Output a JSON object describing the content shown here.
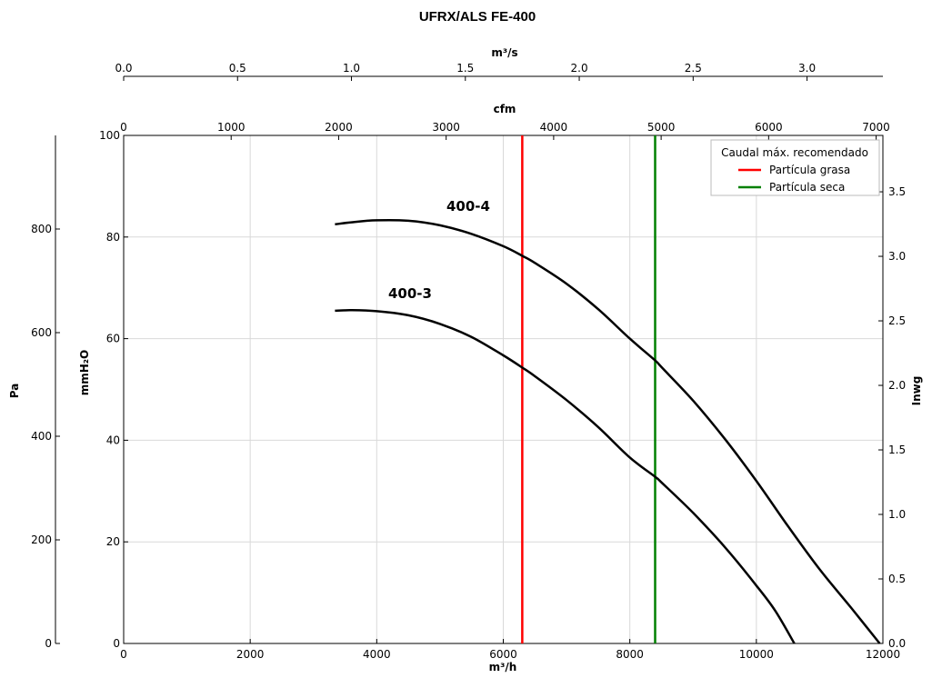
{
  "chart_data": {
    "type": "line",
    "title": "UFRX/ALS FE-400",
    "axes": {
      "bottom": {
        "label": "m³/h",
        "range": [
          0,
          12000
        ],
        "ticks": [
          "0",
          "2000",
          "4000",
          "6000",
          "8000",
          "10000",
          "12000"
        ]
      },
      "top_cfm": {
        "label": "cfm",
        "range": [
          0,
          7062.9
        ],
        "ticks": [
          "0",
          "1000",
          "2000",
          "3000",
          "4000",
          "5000",
          "6000",
          "7000"
        ]
      },
      "top_m3s": {
        "label": "m³/s",
        "range": [
          0,
          3.333
        ],
        "ticks": [
          "0.0",
          "0.5",
          "1.0",
          "1.5",
          "2.0",
          "2.5",
          "3.0"
        ]
      },
      "left_mmh2o": {
        "label": "mmH₂O",
        "range": [
          0,
          100
        ],
        "ticks": [
          "0",
          "20",
          "40",
          "60",
          "80",
          "100"
        ]
      },
      "left_pa": {
        "label": "Pa",
        "range": [
          0,
          980.67
        ],
        "ticks": [
          "0",
          "200",
          "400",
          "600",
          "800"
        ]
      },
      "right_inwg": {
        "label": "Inwg",
        "range": [
          0,
          3.937
        ],
        "ticks": [
          "0.0",
          "0.5",
          "1.0",
          "1.5",
          "2.0",
          "2.5",
          "3.0",
          "3.5"
        ]
      }
    },
    "grid": true,
    "legend": {
      "title": "Caudal máx. recomendado",
      "placement": "top-right",
      "entries": [
        {
          "label": "Partícula grasa",
          "color": "#ff0000"
        },
        {
          "label": "Partícula seca",
          "color": "#008000"
        }
      ]
    },
    "series": [
      {
        "name": "400-4",
        "color": "#000000",
        "x": [
          3340,
          3600,
          4000,
          4500,
          5000,
          5500,
          6000,
          6300,
          6500,
          7000,
          7500,
          8000,
          8400,
          8500,
          9000,
          9500,
          10000,
          10500,
          11000,
          11500,
          11950
        ],
        "y": [
          82.5,
          82.9,
          83.3,
          83.2,
          82.3,
          80.6,
          78.2,
          76.3,
          74.9,
          70.8,
          65.8,
          60.0,
          55.7,
          54.4,
          47.8,
          40.3,
          32.0,
          23.1,
          14.6,
          7.0,
          0
        ]
      },
      {
        "name": "400-3",
        "color": "#000000",
        "x": [
          3340,
          3600,
          4000,
          4500,
          5000,
          5500,
          6000,
          6300,
          6500,
          7000,
          7500,
          8000,
          8400,
          8500,
          9000,
          9500,
          10000,
          10300,
          10600
        ],
        "y": [
          65.5,
          65.6,
          65.4,
          64.6,
          62.9,
          60.3,
          56.7,
          54.3,
          52.6,
          47.9,
          42.6,
          36.6,
          32.8,
          31.7,
          25.7,
          19.0,
          11.4,
          6.4,
          0
        ]
      }
    ],
    "vlines": [
      {
        "label": "Partícula grasa",
        "x": 6300,
        "color": "#ff0000"
      },
      {
        "label": "Partícula seca",
        "x": 8400,
        "color": "#008000"
      }
    ]
  }
}
